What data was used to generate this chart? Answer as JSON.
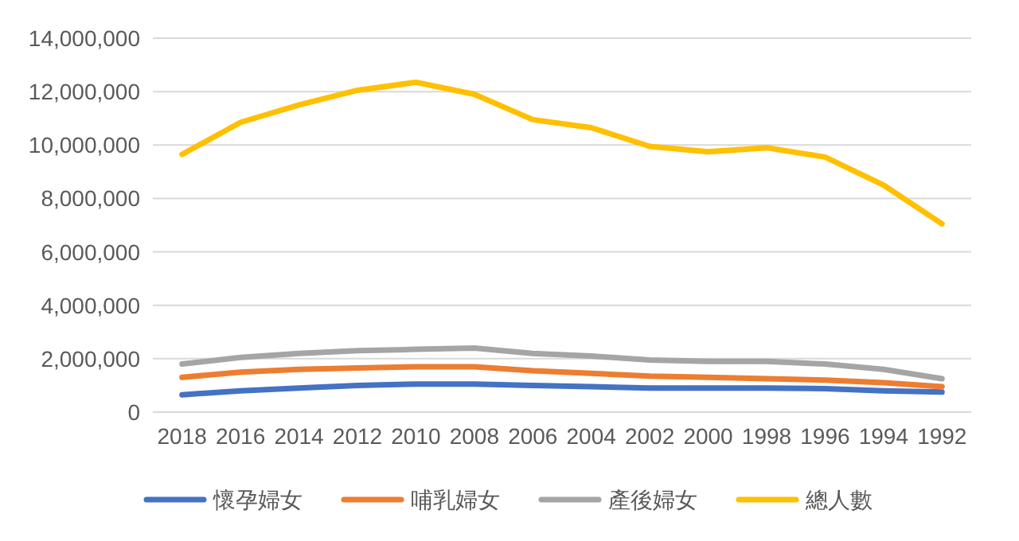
{
  "chart_data": {
    "type": "line",
    "categories": [
      "2018",
      "2016",
      "2014",
      "2012",
      "2010",
      "2008",
      "2006",
      "2004",
      "2002",
      "2000",
      "1998",
      "1996",
      "1994",
      "1992"
    ],
    "series": [
      {
        "name": "懷孕婦女",
        "color": "#4472c4",
        "values": [
          650000,
          800000,
          900000,
          1000000,
          1050000,
          1050000,
          1000000,
          950000,
          900000,
          900000,
          900000,
          880000,
          800000,
          750000
        ]
      },
      {
        "name": "哺乳婦女",
        "color": "#ed7d31",
        "values": [
          1300000,
          1500000,
          1600000,
          1650000,
          1700000,
          1700000,
          1550000,
          1450000,
          1350000,
          1300000,
          1250000,
          1200000,
          1100000,
          950000
        ]
      },
      {
        "name": "產後婦女",
        "color": "#a5a5a5",
        "values": [
          1800000,
          2050000,
          2200000,
          2300000,
          2350000,
          2400000,
          2200000,
          2100000,
          1950000,
          1900000,
          1900000,
          1800000,
          1600000,
          1250000
        ]
      },
      {
        "name": "總人數",
        "color": "#ffc000",
        "values": [
          9650000,
          10850000,
          11500000,
          12050000,
          12350000,
          11900000,
          10950000,
          10650000,
          9950000,
          9750000,
          9900000,
          9550000,
          8500000,
          7050000
        ]
      }
    ],
    "ylim": [
      0,
      14000000
    ],
    "yticks": [
      {
        "value": 0,
        "label": "0"
      },
      {
        "value": 2000000,
        "label": "2,000,000"
      },
      {
        "value": 4000000,
        "label": "4,000,000"
      },
      {
        "value": 6000000,
        "label": "6,000,000"
      },
      {
        "value": 8000000,
        "label": "8,000,000"
      },
      {
        "value": 10000000,
        "label": "10,000,000"
      },
      {
        "value": 12000000,
        "label": "12,000,000"
      },
      {
        "value": 14000000,
        "label": "14,000,000"
      }
    ],
    "grid": "y",
    "legend": "bottom",
    "marker": "none",
    "line_style": "solid"
  }
}
